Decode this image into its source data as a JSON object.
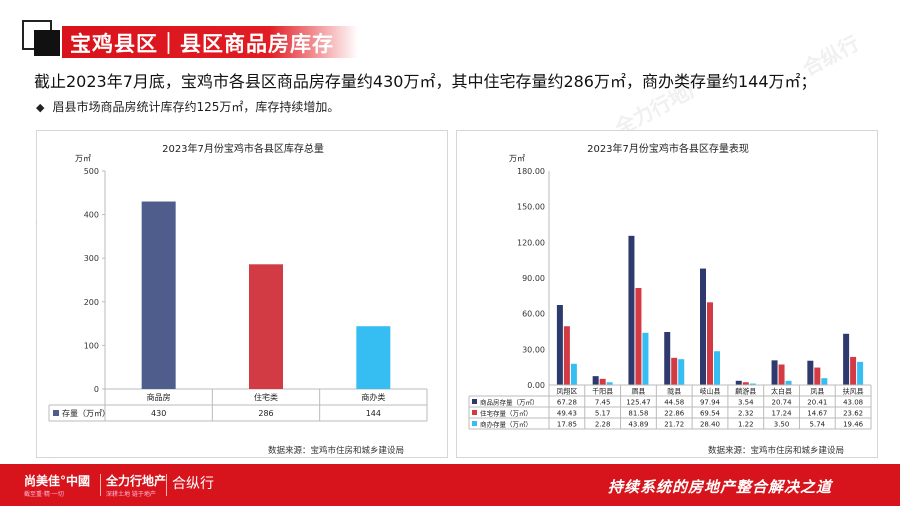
{
  "header": {
    "title": "宝鸡县区｜县区商品房库存"
  },
  "summary": "截止2023年7月底，宝鸡市各县区商品房存量约430万㎡，其中住宅存量约286万㎡，商办类存量约144万㎡；",
  "bullet": {
    "glyph": "◆",
    "text": "眉县市场商品房统计库存约125万㎡，库存持续增加。"
  },
  "chart_data": [
    {
      "type": "bar",
      "title": "2023年7月份宝鸡市各县区库存总量",
      "ylabel": "万㎡",
      "ylim": [
        0,
        500
      ],
      "yticks": [
        0,
        100,
        200,
        300,
        400,
        500
      ],
      "categories": [
        "商品房",
        "住宅类",
        "商办类"
      ],
      "series": [
        {
          "name": "存量（万㎡）",
          "values": [
            430,
            286,
            144
          ]
        }
      ],
      "point_colors": [
        "#4f5d8c",
        "#d33b44",
        "#36bdf2"
      ],
      "grid": false,
      "data_table": true
    },
    {
      "type": "bar",
      "title": "2023年7月份宝鸡市各县区存量表现",
      "ylabel": "万㎡",
      "ylim": [
        0,
        180
      ],
      "yticks": [
        "0.00",
        "30.00",
        "60.00",
        "90.00",
        "120.00",
        "150.00",
        "180.00"
      ],
      "categories": [
        "凤翔区",
        "千阳县",
        "眉县",
        "陇县",
        "岐山县",
        "麟游县",
        "太白县",
        "凤县",
        "扶风县"
      ],
      "series": [
        {
          "name": "商品房存量（万㎡）",
          "color": "#2e3a6e",
          "values": [
            67.28,
            7.45,
            125.47,
            44.58,
            97.94,
            3.54,
            20.74,
            20.41,
            43.08
          ],
          "labels": [
            "67.28",
            "7.45",
            "125.47",
            "44.58",
            "97.94",
            "3.54",
            "20.74",
            "20.41",
            "43.08"
          ]
        },
        {
          "name": "住宅存量（万㎡）",
          "color": "#d33b44",
          "values": [
            49.43,
            5.17,
            81.58,
            22.86,
            69.54,
            2.32,
            17.24,
            14.67,
            23.62
          ],
          "labels": [
            "49.43",
            "5.17",
            "81.58",
            "22.86",
            "69.54",
            "2.32",
            "17.24",
            "14.67",
            "23.62"
          ]
        },
        {
          "name": "商办存量（万㎡）",
          "color": "#36bdf2",
          "values": [
            17.85,
            2.28,
            43.89,
            21.72,
            28.4,
            1.22,
            3.5,
            5.74,
            19.46
          ],
          "labels": [
            "17.85",
            "2.28",
            "43.89",
            "21.72",
            "28.40",
            "1.22",
            "3.50",
            "5.74",
            "19.46"
          ]
        }
      ],
      "grid": false,
      "data_table": true
    }
  ],
  "sources": {
    "left": "数据来源：宝鸡市住房和城乡建设局",
    "right": "数据来源：宝鸡市住房和城乡建设局"
  },
  "footer": {
    "brand1": "尚美佳°中國",
    "brand1_sub": "截至重·精·一切",
    "brand2": "全力行地产",
    "brand2_sub": "深耕土地 链于地产",
    "brand3": "合纵行",
    "brand3_sub": "",
    "slogan": "持续系统的房地产整合解决之道"
  },
  "watermarks": [
    "尚美佳°中國",
    "全力行地产",
    "合纵行"
  ]
}
